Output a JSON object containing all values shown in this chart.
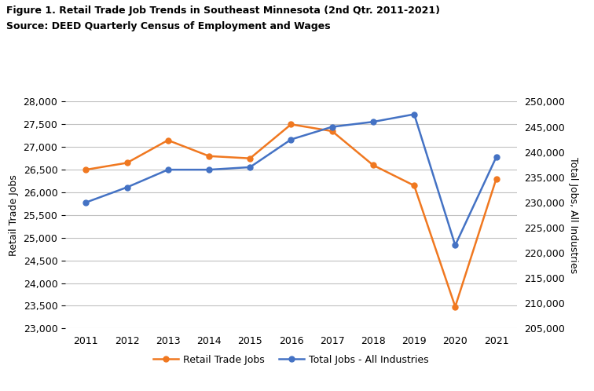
{
  "years": [
    2011,
    2012,
    2013,
    2014,
    2015,
    2016,
    2017,
    2018,
    2019,
    2020,
    2021
  ],
  "retail_trade_jobs": [
    26500,
    26650,
    27150,
    26800,
    26750,
    27500,
    27350,
    26600,
    26150,
    23480,
    26300
  ],
  "total_jobs": [
    230000,
    233000,
    236500,
    236500,
    237000,
    242500,
    245000,
    246000,
    247500,
    221500,
    239000
  ],
  "retail_color": "#f07820",
  "total_color": "#4472c4",
  "title_line1": "Figure 1. Retail Trade Job Trends in Southeast Minnesota (2nd Qtr. 2011-2021)",
  "title_line2": "Source: DEED Quarterly Census of Employment and Wages",
  "ylabel_left": "Retail Trade Jobs",
  "ylabel_right": "Total Jobs, All Industries",
  "retail_label": "Retail Trade Jobs",
  "total_label": "Total Jobs - All Industries",
  "ylim_left": [
    23000,
    28000
  ],
  "ylim_right": [
    205000,
    250000
  ],
  "yticks_left": [
    23000,
    23500,
    24000,
    24500,
    25000,
    25500,
    26000,
    26500,
    27000,
    27500,
    28000
  ],
  "yticks_right": [
    205000,
    210000,
    215000,
    220000,
    225000,
    230000,
    235000,
    240000,
    245000,
    250000
  ],
  "background_color": "#ffffff",
  "grid_color": "#c0c0c0",
  "title_fontsize": 9.0,
  "axis_label_fontsize": 9,
  "tick_fontsize": 9,
  "legend_fontsize": 9,
  "marker_size": 5,
  "line_width": 1.8
}
